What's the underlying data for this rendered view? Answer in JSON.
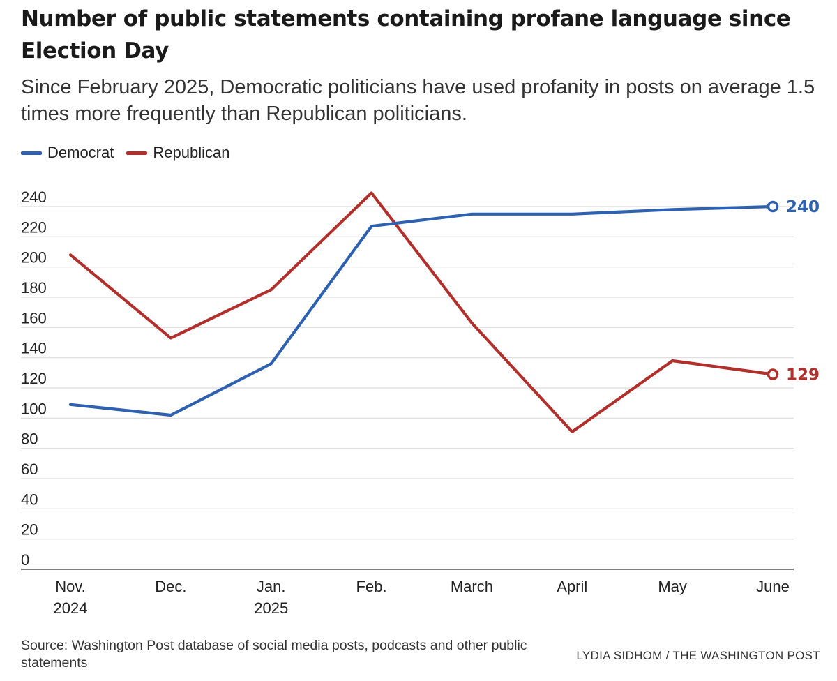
{
  "header": {
    "title": "Number of public statements containing profane language since Election Day",
    "subtitle": "Since February 2025, Democratic politicians have used profanity in posts on average 1.5 times more frequently than Republican politicians."
  },
  "legend": {
    "items": [
      {
        "label": "Democrat",
        "color": "#2e61b0"
      },
      {
        "label": "Republican",
        "color": "#b1302b"
      }
    ]
  },
  "chart_data": {
    "type": "line",
    "title": "Number of public statements containing profane language since Election Day",
    "xlabel": "",
    "ylabel": "",
    "ylim": [
      0,
      240
    ],
    "yticks": [
      "0",
      "20",
      "40",
      "60",
      "80",
      "100",
      "120",
      "140",
      "160",
      "180",
      "200",
      "220",
      "240"
    ],
    "grid": true,
    "categories": [
      [
        "Nov.",
        "2024"
      ],
      [
        "Dec."
      ],
      [
        "Jan.",
        "2025"
      ],
      [
        "Feb."
      ],
      [
        "March"
      ],
      [
        "April"
      ],
      [
        "May"
      ],
      [
        "June"
      ]
    ],
    "series": [
      {
        "name": "Democrat",
        "color": "#2e61b0",
        "values": [
          109,
          102,
          136,
          227,
          235,
          235,
          238,
          240
        ],
        "end_label": "240"
      },
      {
        "name": "Republican",
        "color": "#b1302b",
        "values": [
          208,
          153,
          185,
          249,
          163,
          91,
          138,
          129
        ],
        "end_label": "129"
      }
    ]
  },
  "footer": {
    "source": "Source: Washington Post database of social media posts, podcasts and other public statements",
    "credit": "LYDIA SIDHOM / THE WASHINGTON POST"
  }
}
